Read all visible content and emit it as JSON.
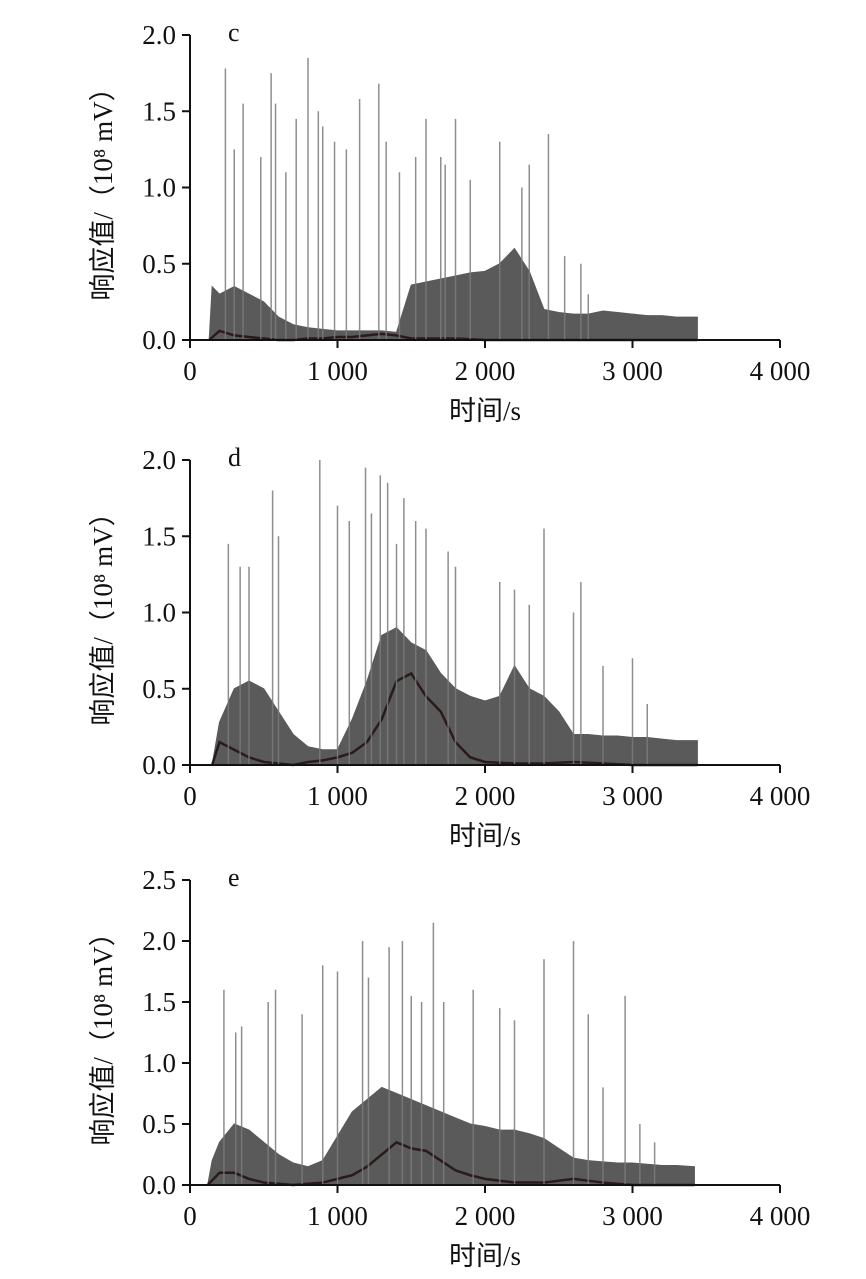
{
  "chart_data": [
    {
      "panel": "c",
      "type": "area",
      "xlabel": "时间/s",
      "ylabel": "响应值/（10⁸ mV）",
      "xlim": [
        0,
        4000
      ],
      "ylim": [
        0,
        2.0
      ],
      "xticks": [
        "0",
        "1 000",
        "2 000",
        "3 000",
        "4 000"
      ],
      "yticks": [
        "0.0",
        "0.5",
        "1.0",
        "1.5",
        "2.0"
      ],
      "series": [
        {
          "color": "#5a5a5a",
          "x": [
            130,
            150,
            200,
            300,
            400,
            500,
            600,
            700,
            800,
            900,
            1000,
            1100,
            1200,
            1300,
            1400,
            1500,
            1600,
            1700,
            1800,
            1900,
            2000,
            2100,
            2200,
            2300,
            2400,
            2500,
            2600,
            2700,
            2800,
            2900,
            3000,
            3100,
            3200,
            3300,
            3440
          ],
          "values": [
            0.0,
            0.35,
            0.3,
            0.35,
            0.3,
            0.25,
            0.15,
            0.1,
            0.08,
            0.07,
            0.06,
            0.06,
            0.06,
            0.06,
            0.05,
            0.36,
            0.38,
            0.4,
            0.42,
            0.44,
            0.45,
            0.5,
            0.6,
            0.45,
            0.2,
            0.18,
            0.17,
            0.17,
            0.19,
            0.18,
            0.17,
            0.16,
            0.16,
            0.15,
            0.15
          ]
        },
        {
          "color": "#2a1a1a",
          "x": [
            130,
            200,
            300,
            400,
            500,
            600,
            700,
            800,
            900,
            1000,
            1100,
            1200,
            1300,
            1400,
            1500,
            1600,
            1800,
            2000,
            2200,
            2400,
            2600,
            2800,
            3000,
            3200,
            3440
          ],
          "values": [
            0.0,
            0.06,
            0.03,
            0.02,
            0.01,
            0.0,
            0.0,
            0.01,
            0.01,
            0.02,
            0.02,
            0.03,
            0.04,
            0.03,
            0.01,
            0.01,
            0.01,
            0.0,
            0.0,
            0.0,
            0.0,
            0.0,
            0.0,
            0.0,
            0.0
          ]
        }
      ],
      "spikes": [
        [
          240,
          1.78
        ],
        [
          300,
          1.25
        ],
        [
          360,
          1.55
        ],
        [
          480,
          1.2
        ],
        [
          550,
          1.75
        ],
        [
          580,
          1.55
        ],
        [
          650,
          1.1
        ],
        [
          720,
          1.45
        ],
        [
          800,
          1.85
        ],
        [
          870,
          1.5
        ],
        [
          900,
          1.4
        ],
        [
          980,
          1.3
        ],
        [
          1060,
          1.25
        ],
        [
          1150,
          1.58
        ],
        [
          1280,
          1.68
        ],
        [
          1330,
          1.3
        ],
        [
          1420,
          1.1
        ],
        [
          1530,
          1.2
        ],
        [
          1600,
          1.45
        ],
        [
          1700,
          1.2
        ],
        [
          1730,
          1.15
        ],
        [
          1800,
          1.45
        ],
        [
          1900,
          1.05
        ],
        [
          2100,
          1.3
        ],
        [
          2250,
          1.0
        ],
        [
          2300,
          1.15
        ],
        [
          2430,
          1.35
        ],
        [
          2540,
          0.55
        ],
        [
          2650,
          0.5
        ],
        [
          2700,
          0.3
        ]
      ]
    },
    {
      "panel": "d",
      "type": "area",
      "xlabel": "时间/s",
      "ylabel": "响应值/（10⁸ mV）",
      "xlim": [
        0,
        4000
      ],
      "ylim": [
        0,
        2.0
      ],
      "xticks": [
        "0",
        "1 000",
        "2 000",
        "3 000",
        "4 000"
      ],
      "yticks": [
        "0.0",
        "0.5",
        "1.0",
        "1.5",
        "2.0"
      ],
      "series": [
        {
          "color": "#5a5a5a",
          "x": [
            150,
            200,
            300,
            400,
            500,
            600,
            700,
            800,
            900,
            1000,
            1100,
            1200,
            1300,
            1400,
            1500,
            1600,
            1700,
            1800,
            1900,
            2000,
            2100,
            2200,
            2300,
            2400,
            2500,
            2600,
            2700,
            2800,
            2900,
            3000,
            3100,
            3200,
            3300,
            3440
          ],
          "values": [
            0.0,
            0.28,
            0.5,
            0.55,
            0.5,
            0.35,
            0.2,
            0.12,
            0.1,
            0.1,
            0.3,
            0.55,
            0.85,
            0.9,
            0.8,
            0.75,
            0.6,
            0.5,
            0.45,
            0.42,
            0.45,
            0.65,
            0.5,
            0.45,
            0.35,
            0.2,
            0.2,
            0.19,
            0.19,
            0.18,
            0.18,
            0.17,
            0.16,
            0.16
          ]
        },
        {
          "color": "#2a1a1a",
          "x": [
            150,
            200,
            300,
            400,
            500,
            600,
            700,
            800,
            900,
            1000,
            1100,
            1200,
            1300,
            1400,
            1500,
            1600,
            1700,
            1800,
            1900,
            2000,
            2200,
            2400,
            2600,
            2800,
            3000,
            3200,
            3440
          ],
          "values": [
            0.0,
            0.15,
            0.1,
            0.05,
            0.02,
            0.01,
            0.0,
            0.02,
            0.03,
            0.05,
            0.08,
            0.15,
            0.3,
            0.55,
            0.6,
            0.45,
            0.35,
            0.15,
            0.05,
            0.02,
            0.01,
            0.01,
            0.02,
            0.01,
            0.0,
            0.0,
            0.0
          ]
        }
      ],
      "spikes": [
        [
          260,
          1.45
        ],
        [
          340,
          1.3
        ],
        [
          400,
          1.3
        ],
        [
          560,
          1.8
        ],
        [
          600,
          1.5
        ],
        [
          880,
          2.0
        ],
        [
          1000,
          1.7
        ],
        [
          1080,
          1.6
        ],
        [
          1190,
          1.95
        ],
        [
          1230,
          1.65
        ],
        [
          1290,
          1.9
        ],
        [
          1340,
          1.85
        ],
        [
          1400,
          1.45
        ],
        [
          1450,
          1.75
        ],
        [
          1530,
          1.6
        ],
        [
          1600,
          1.55
        ],
        [
          1750,
          1.4
        ],
        [
          1800,
          1.3
        ],
        [
          2100,
          1.2
        ],
        [
          2200,
          1.15
        ],
        [
          2300,
          1.05
        ],
        [
          2400,
          1.55
        ],
        [
          2600,
          1.0
        ],
        [
          2650,
          1.2
        ],
        [
          2800,
          0.65
        ],
        [
          3000,
          0.7
        ],
        [
          3100,
          0.4
        ]
      ]
    },
    {
      "panel": "e",
      "type": "area",
      "xlabel": "时间/s",
      "ylabel": "响应值/（10⁸ mV）",
      "xlim": [
        0,
        4000
      ],
      "ylim": [
        0,
        2.5
      ],
      "xticks": [
        "0",
        "1 000",
        "2 000",
        "3 000",
        "4 000"
      ],
      "yticks": [
        "0.0",
        "0.5",
        "1.0",
        "1.5",
        "2.0",
        "2.5"
      ],
      "series": [
        {
          "color": "#5a5a5a",
          "x": [
            120,
            150,
            200,
            300,
            400,
            500,
            600,
            700,
            800,
            900,
            1000,
            1100,
            1200,
            1300,
            1400,
            1500,
            1600,
            1700,
            1800,
            1900,
            2000,
            2100,
            2200,
            2300,
            2400,
            2500,
            2600,
            2700,
            2800,
            2900,
            3000,
            3100,
            3200,
            3300,
            3420
          ],
          "values": [
            0.0,
            0.2,
            0.35,
            0.5,
            0.45,
            0.35,
            0.25,
            0.18,
            0.15,
            0.2,
            0.4,
            0.6,
            0.7,
            0.8,
            0.75,
            0.7,
            0.65,
            0.6,
            0.55,
            0.5,
            0.48,
            0.45,
            0.45,
            0.42,
            0.38,
            0.3,
            0.22,
            0.2,
            0.19,
            0.18,
            0.18,
            0.17,
            0.16,
            0.16,
            0.15
          ]
        },
        {
          "color": "#2a1a1a",
          "x": [
            120,
            200,
            300,
            400,
            500,
            600,
            700,
            800,
            900,
            1000,
            1100,
            1200,
            1300,
            1400,
            1500,
            1600,
            1700,
            1800,
            1900,
            2000,
            2200,
            2400,
            2600,
            2800,
            3000,
            3200,
            3420
          ],
          "values": [
            0.0,
            0.1,
            0.1,
            0.05,
            0.02,
            0.01,
            0.0,
            0.01,
            0.02,
            0.05,
            0.08,
            0.15,
            0.25,
            0.35,
            0.3,
            0.28,
            0.2,
            0.12,
            0.08,
            0.05,
            0.02,
            0.02,
            0.05,
            0.02,
            0.0,
            0.0,
            0.0
          ]
        }
      ],
      "spikes": [
        [
          230,
          1.6
        ],
        [
          310,
          1.25
        ],
        [
          350,
          1.3
        ],
        [
          530,
          1.5
        ],
        [
          580,
          1.6
        ],
        [
          760,
          1.4
        ],
        [
          900,
          1.8
        ],
        [
          1000,
          1.75
        ],
        [
          1170,
          2.0
        ],
        [
          1210,
          1.7
        ],
        [
          1350,
          1.95
        ],
        [
          1440,
          2.0
        ],
        [
          1500,
          1.55
        ],
        [
          1570,
          1.5
        ],
        [
          1650,
          2.15
        ],
        [
          1720,
          1.5
        ],
        [
          1920,
          1.6
        ],
        [
          2100,
          1.45
        ],
        [
          2200,
          1.35
        ],
        [
          2400,
          1.85
        ],
        [
          2600,
          2.0
        ],
        [
          2700,
          1.4
        ],
        [
          2800,
          0.8
        ],
        [
          2950,
          1.55
        ],
        [
          3050,
          0.5
        ],
        [
          3150,
          0.35
        ]
      ]
    }
  ]
}
